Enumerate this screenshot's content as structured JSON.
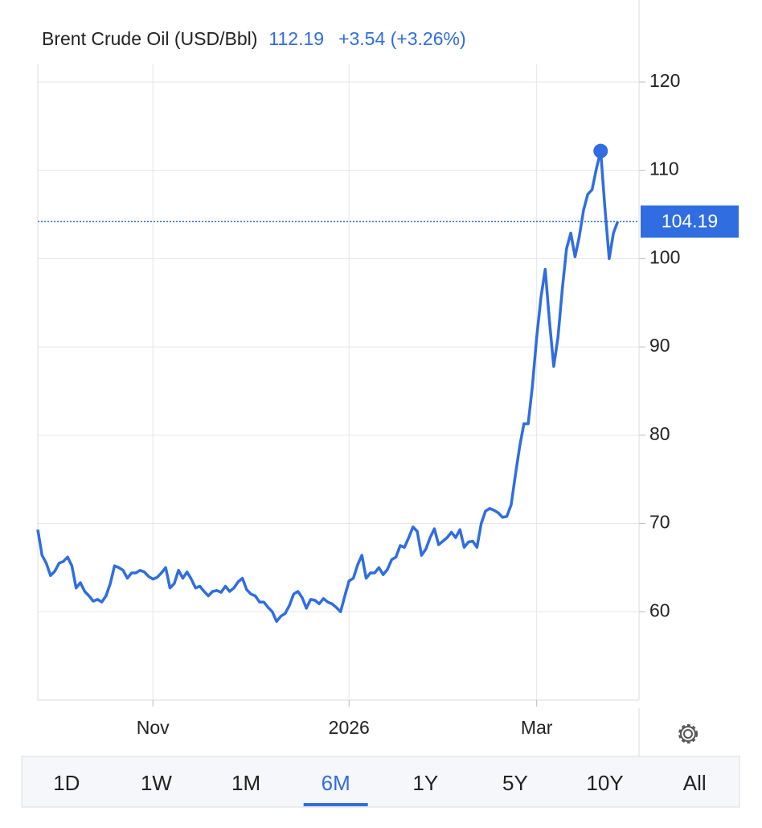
{
  "chart_data": {
    "type": "line",
    "title": "Brent Crude Oil (USD/Bbl)",
    "price": "112.19",
    "change": "+3.54 (+3.26%)",
    "color": "#2f6de1",
    "values": [
      69.3,
      66.4,
      65.5,
      64.1,
      64.6,
      65.5,
      65.7,
      66.2,
      65.2,
      62.7,
      63.3,
      62.3,
      61.8,
      61.2,
      61.4,
      61.1,
      61.8,
      63.2,
      65.2,
      65.0,
      64.7,
      63.8,
      64.4,
      64.4,
      64.7,
      64.5,
      64.0,
      63.7,
      63.9,
      64.4,
      65.0,
      62.7,
      63.2,
      64.7,
      63.8,
      64.5,
      63.7,
      62.7,
      62.9,
      62.3,
      61.8,
      62.3,
      62.4,
      62.2,
      62.9,
      62.3,
      62.7,
      63.4,
      63.8,
      62.5,
      62.0,
      61.8,
      61.1,
      61.1,
      60.5,
      60.0,
      58.9,
      59.5,
      59.8,
      60.7,
      62.0,
      62.3,
      61.6,
      60.4,
      61.4,
      61.3,
      60.9,
      61.5,
      61.1,
      60.9,
      60.5,
      60.0,
      61.8,
      63.5,
      63.8,
      65.3,
      66.4,
      63.8,
      64.4,
      64.4,
      65.0,
      64.2,
      64.8,
      65.9,
      66.2,
      67.5,
      67.3,
      68.4,
      69.6,
      69.1,
      66.4,
      67.1,
      68.4,
      69.4,
      67.6,
      68.0,
      68.4,
      69.0,
      68.4,
      69.3,
      67.3,
      67.9,
      68.0,
      67.3,
      70.0,
      71.4,
      71.7,
      71.5,
      71.2,
      70.7,
      70.8,
      72.1,
      75.5,
      78.7,
      81.3,
      81.3,
      85.6,
      91.1,
      95.6,
      98.8,
      92.9,
      87.8,
      91.1,
      96.5,
      101.1,
      102.9,
      100.2,
      102.5,
      105.5,
      107.3,
      107.8,
      110.2,
      112.19,
      105.7,
      100.0,
      102.9,
      104.19
    ],
    "highlight_index": 132,
    "last_value": 104.19,
    "xlim": [
      0,
      141
    ],
    "xticks": [
      {
        "value": 27,
        "label": "Nov"
      },
      {
        "value": 73,
        "label": "2026"
      },
      {
        "value": 117,
        "label": "Mar"
      }
    ],
    "ylim": [
      50,
      122
    ],
    "yticks": [
      60,
      70,
      80,
      90,
      100,
      110,
      120
    ],
    "grid": true,
    "ranges": [
      "1D",
      "1W",
      "1M",
      "6M",
      "1Y",
      "5Y",
      "10Y",
      "All"
    ],
    "selected_range": 3
  }
}
